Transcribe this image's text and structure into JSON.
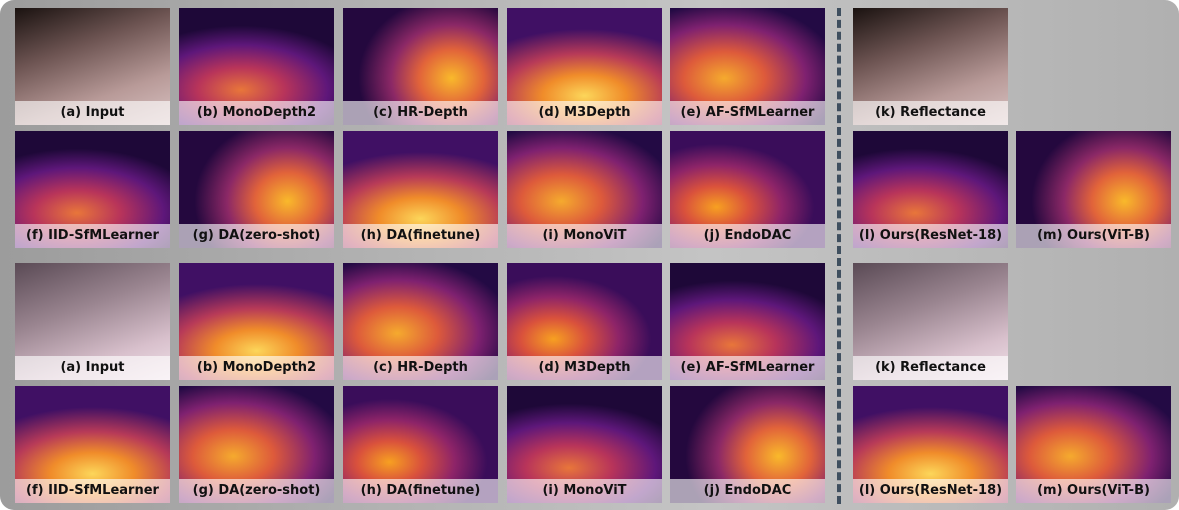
{
  "groups": [
    {
      "row1": [
        "(a) Input",
        "(b) MonoDepth2",
        "(c) HR-Depth",
        "(d) M3Depth",
        "(e) AF-SfMLearner",
        "(k) Reflectance"
      ],
      "row2": [
        "(f) IID-SfMLearner",
        "(g) DA(zero-shot)",
        "(h) DA(finetune)",
        "(i) MonoViT",
        "(j) EndoDAC",
        "(l) Ours(ResNet-18)",
        "(m) Ours(ViT-B)"
      ]
    },
    {
      "row1": [
        "(a) Input",
        "(b) MonoDepth2",
        "(c) HR-Depth",
        "(d) M3Depth",
        "(e) AF-SfMLearner",
        "(k) Reflectance"
      ],
      "row2": [
        "(f) IID-SfMLearner",
        "(g) DA(zero-shot)",
        "(h) DA(finetune)",
        "(i) MonoViT",
        "(j) EndoDAC",
        "(l) Ours(ResNet-18)",
        "(m) Ours(ViT-B)"
      ]
    }
  ]
}
